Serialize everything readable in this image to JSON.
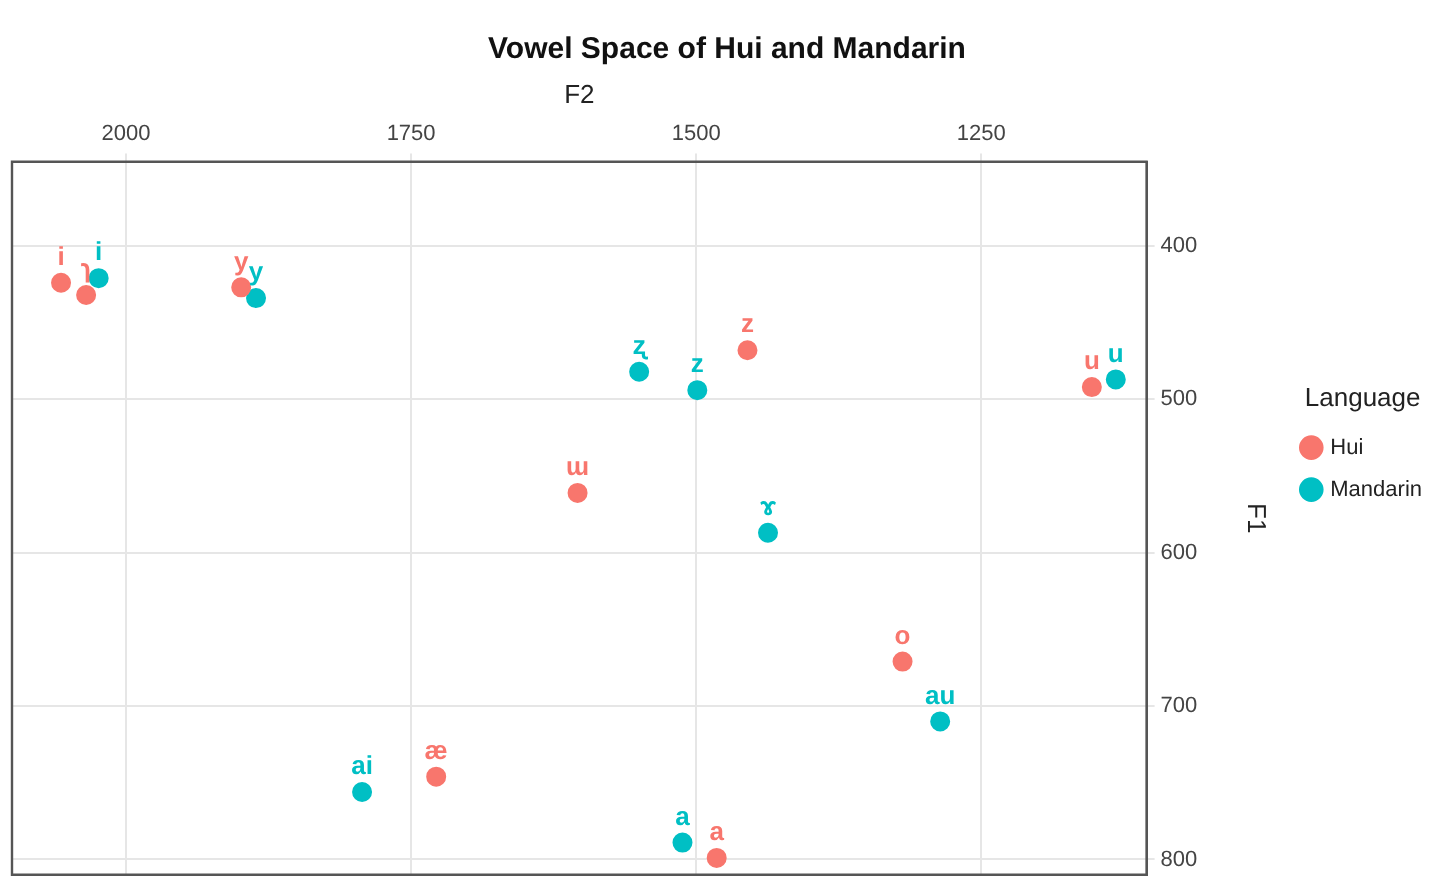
{
  "chart_data": {
    "type": "scatter",
    "title": "Vowel Space of Hui and Mandarin",
    "xlabel": "F2",
    "ylabel": "F1",
    "legend_title": "Language",
    "xlim": [
      2100,
      1105
    ],
    "xticks": [
      2000,
      1750,
      1500,
      1250
    ],
    "ylim": [
      810,
      345
    ],
    "yticks": [
      400,
      500,
      600,
      700,
      800
    ],
    "grid": true,
    "legend": "right",
    "marker": "circle",
    "series": [
      {
        "name": "Hui",
        "color": "#f8766d",
        "x": [
          2057,
          2035,
          1899,
          1604,
          1455,
          1153,
          1319,
          1728,
          1482
        ],
        "values": [
          424,
          432,
          427,
          561,
          468,
          492,
          671,
          746,
          799
        ]
      },
      {
        "name": "Mandarin",
        "color": "#00bfc4",
        "x": [
          2024,
          1886,
          1550,
          1499,
          1437,
          1132,
          1286,
          1793,
          1512
        ],
        "values": [
          421,
          434,
          482,
          494,
          587,
          487,
          710,
          756,
          789
        ]
      }
    ],
    "annotations": [
      {
        "text": "i",
        "x": 2057,
        "y": 424
      },
      {
        "text": "ɿ",
        "x": 2035,
        "y": 432
      },
      {
        "text": "y",
        "x": 1899,
        "y": 427
      },
      {
        "text": "ɯ",
        "x": 1604,
        "y": 561
      },
      {
        "text": "z",
        "x": 1455,
        "y": 468
      },
      {
        "text": "u",
        "x": 1153,
        "y": 492
      },
      {
        "text": "o",
        "x": 1319,
        "y": 671
      },
      {
        "text": "æ",
        "x": 1728,
        "y": 746
      },
      {
        "text": "a",
        "x": 1482,
        "y": 799
      },
      {
        "text": "i",
        "x": 2024,
        "y": 421
      },
      {
        "text": "y",
        "x": 1886,
        "y": 434
      },
      {
        "text": "ʐ",
        "x": 1550,
        "y": 482
      },
      {
        "text": "z",
        "x": 1499,
        "y": 494
      },
      {
        "text": "ɤ",
        "x": 1437,
        "y": 587
      },
      {
        "text": "u",
        "x": 1132,
        "y": 487
      },
      {
        "text": "au",
        "x": 1286,
        "y": 710
      },
      {
        "text": "ai",
        "x": 1793,
        "y": 756
      },
      {
        "text": "a",
        "x": 1512,
        "y": 789
      }
    ]
  }
}
